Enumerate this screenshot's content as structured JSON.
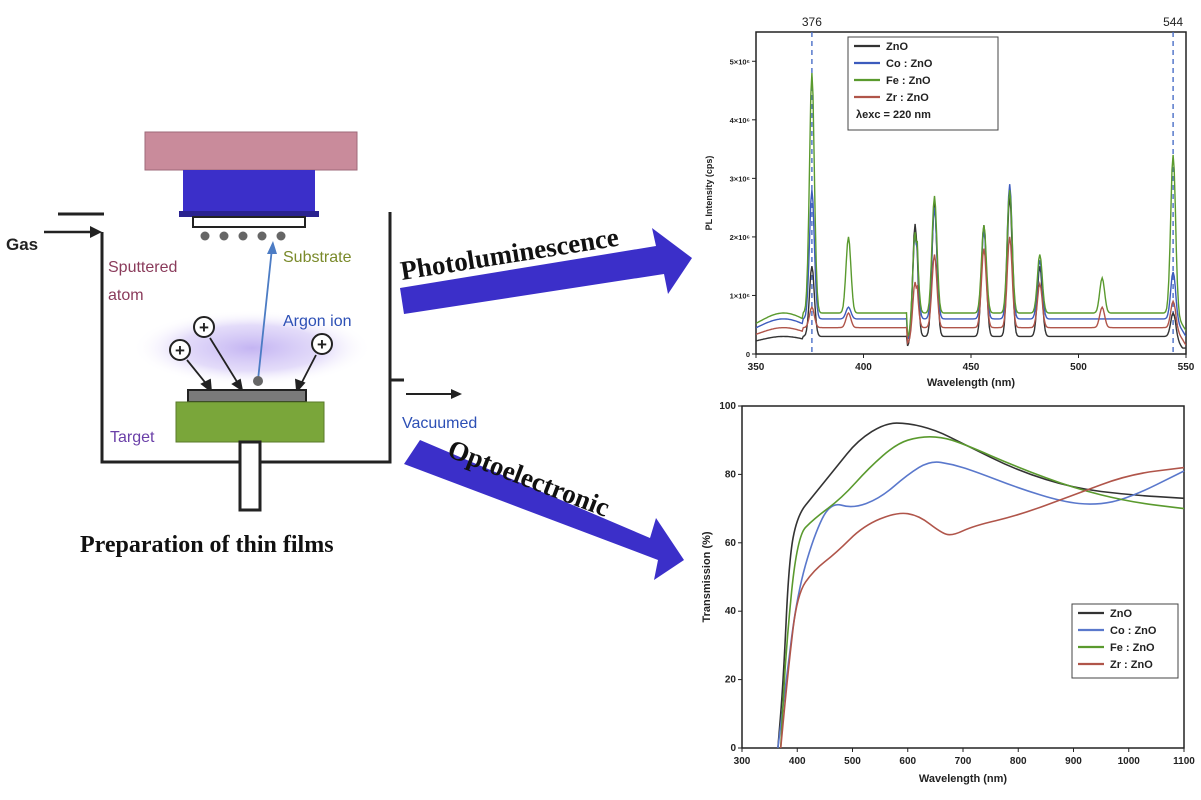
{
  "diagram": {
    "caption": "Preparation of thin films",
    "labels": {
      "gas": "Gas",
      "substrate": "Substrate",
      "sputtered_atom_line1": "Sputtered",
      "sputtered_atom_line2": "atom",
      "argon_ion": "Argon ion",
      "target": "Target",
      "vacuumed": "Vacuumed",
      "ion_symbol": "+"
    },
    "arrows": {
      "photoluminescence": "Photoluminescence",
      "optoelectronic": "Optoelectronic"
    },
    "colors": {
      "arrow": "#3b2fc9",
      "substrate_label": "#7a8a2a",
      "sputtered_label": "#8a3b5b",
      "argon_label": "#2c4fb5",
      "target_label": "#6a3fa8",
      "vacuumed_label": "#2c4fb5",
      "top_plate": "#c98b9b",
      "holder": "#3b2fc9",
      "target_block": "#7aa63a",
      "plasma": "#b9a7f0"
    }
  },
  "chart_data": [
    {
      "type": "line",
      "xlabel": "Wavelength (nm)",
      "ylabel": "PL Intensity (cps)",
      "xlim": [
        350,
        550
      ],
      "ylim": [
        0,
        5500000
      ],
      "x_ticks": [
        "350",
        "400",
        "450",
        "500",
        "550"
      ],
      "y_ticks": [
        "0",
        "1×10⁶",
        "2×10⁶",
        "3×10⁶",
        "4×10⁶",
        "5×10⁶"
      ],
      "annotations": [
        "376",
        "544"
      ],
      "legend_position": "top-left",
      "legend_note": "λexc = 220 nm",
      "peaks_x": [
        376,
        393,
        424,
        433,
        456,
        468,
        482,
        511,
        544
      ],
      "series": [
        {
          "name": "ZnO",
          "color": "#333333",
          "baseline": 300000,
          "peaks": [
            1500000,
            300000,
            2400000,
            2600000,
            2200000,
            2700000,
            1500000,
            300000,
            700000
          ]
        },
        {
          "name": "Co : ZnO",
          "color": "#3c5bbd",
          "baseline": 600000,
          "peaks": [
            2800000,
            800000,
            2400000,
            2500000,
            2100000,
            2900000,
            1600000,
            600000,
            1400000
          ]
        },
        {
          "name": "Fe : ZnO",
          "color": "#5a9a2e",
          "baseline": 700000,
          "peaks": [
            4800000,
            2000000,
            2500000,
            2700000,
            2200000,
            2800000,
            1700000,
            1300000,
            3400000
          ]
        },
        {
          "name": "Zr : ZnO",
          "color": "#b0554a",
          "baseline": 450000,
          "peaks": [
            800000,
            700000,
            1500000,
            1700000,
            1800000,
            2000000,
            1200000,
            800000,
            900000
          ]
        }
      ]
    },
    {
      "type": "line",
      "xlabel": "Wavelength (nm)",
      "ylabel": "Transmission (%)",
      "xlim": [
        300,
        1100
      ],
      "ylim": [
        0,
        100
      ],
      "x_ticks": [
        "300",
        "400",
        "500",
        "600",
        "700",
        "800",
        "900",
        "1000",
        "1100"
      ],
      "y_ticks": [
        "0",
        "20",
        "40",
        "60",
        "80",
        "100"
      ],
      "legend_position": "bottom-right",
      "series": [
        {
          "name": "ZnO",
          "color": "#333333",
          "x": [
            365,
            375,
            385,
            400,
            430,
            470,
            510,
            560,
            600,
            650,
            700,
            800,
            900,
            1000,
            1100
          ],
          "y": [
            0,
            20,
            55,
            68,
            74,
            82,
            90,
            95,
            95,
            93,
            89,
            81,
            76,
            74,
            73
          ]
        },
        {
          "name": "Co : ZnO",
          "color": "#5a78cc",
          "x": [
            365,
            380,
            400,
            430,
            460,
            500,
            550,
            600,
            640,
            680,
            720,
            800,
            880,
            940,
            1000,
            1100
          ],
          "y": [
            0,
            20,
            45,
            62,
            72,
            70,
            73,
            80,
            84,
            83,
            81,
            76,
            72,
            71,
            73,
            81
          ]
        },
        {
          "name": "Fe : ZnO",
          "color": "#5a9a2e",
          "x": [
            370,
            380,
            400,
            430,
            480,
            530,
            580,
            620,
            660,
            700,
            800,
            900,
            1000,
            1100
          ],
          "y": [
            0,
            30,
            62,
            67,
            73,
            82,
            89,
            91,
            91,
            89,
            82,
            76,
            72,
            70
          ]
        },
        {
          "name": "Zr : ZnO",
          "color": "#b0554a",
          "x": [
            370,
            385,
            400,
            430,
            470,
            520,
            580,
            620,
            660,
            680,
            720,
            800,
            900,
            1000,
            1100
          ],
          "y": [
            0,
            25,
            45,
            52,
            57,
            65,
            69,
            68,
            63,
            62,
            65,
            68,
            74,
            80,
            82
          ]
        }
      ]
    }
  ]
}
